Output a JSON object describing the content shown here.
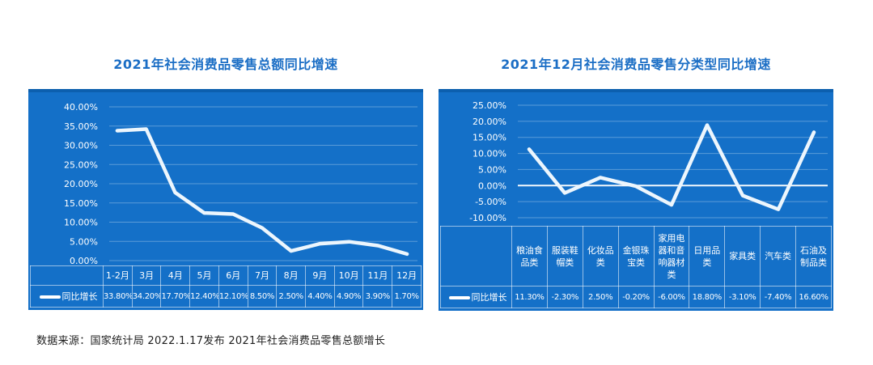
{
  "page": {
    "caption": "数据来源：国家统计局 2022.1.17发布 2021年社会消费品零售总额增长"
  },
  "colors": {
    "panel": "#1470c8",
    "panel_top_edge": "#0c5fae",
    "title": "#1b6ec5",
    "line": "#edf6fd",
    "gridline": "#ffffff",
    "zero_line": "#ffffff",
    "caption_text": "#1f1f1f"
  },
  "chart_data": [
    {
      "type": "line",
      "title": "2021年社会消费品零售总额同比增速",
      "legend": "同比增长",
      "categories": [
        "1-2月",
        "3月",
        "4月",
        "5月",
        "6月",
        "7月",
        "8月",
        "9月",
        "10月",
        "11月",
        "12月"
      ],
      "values": [
        33.8,
        34.2,
        17.7,
        12.4,
        12.1,
        8.5,
        2.5,
        4.4,
        4.9,
        3.9,
        1.7
      ],
      "value_labels": [
        "33.80%",
        "34.20%",
        "17.70%",
        "12.40%",
        "12.10%",
        "8.50%",
        "2.50%",
        "4.40%",
        "4.90%",
        "3.90%",
        "1.70%"
      ],
      "y_ticks": [
        "40.00%",
        "35.00%",
        "30.00%",
        "25.00%",
        "20.00%",
        "15.00%",
        "10.00%",
        "5.00%",
        "0.00%"
      ],
      "ylim": [
        0,
        40
      ],
      "zero_line": false,
      "grid": true,
      "legend_position": "bottom-left"
    },
    {
      "type": "line",
      "title": "2021年12月社会消费品零售分类型同比增速",
      "legend": "同比增长",
      "categories": [
        "粮油食品类",
        "服装鞋帽类",
        "化妆品类",
        "金银珠宝类",
        "家用电器和音响器材类",
        "日用品类",
        "家具类",
        "汽车类",
        "石油及制品类"
      ],
      "values": [
        11.3,
        -2.3,
        2.5,
        -0.2,
        -6.0,
        18.8,
        -3.1,
        -7.4,
        16.6
      ],
      "value_labels": [
        "11.30%",
        "-2.30%",
        "2.50%",
        "-0.20%",
        "-6.00%",
        "18.80%",
        "-3.10%",
        "-7.40%",
        "16.60%"
      ],
      "y_ticks": [
        "25.00%",
        "20.00%",
        "15.00%",
        "10.00%",
        "5.00%",
        "0.00%",
        "-5.00%",
        "-10.00%"
      ],
      "ylim": [
        -10,
        25
      ],
      "zero_line": true,
      "grid": true,
      "legend_position": "bottom-left"
    }
  ]
}
